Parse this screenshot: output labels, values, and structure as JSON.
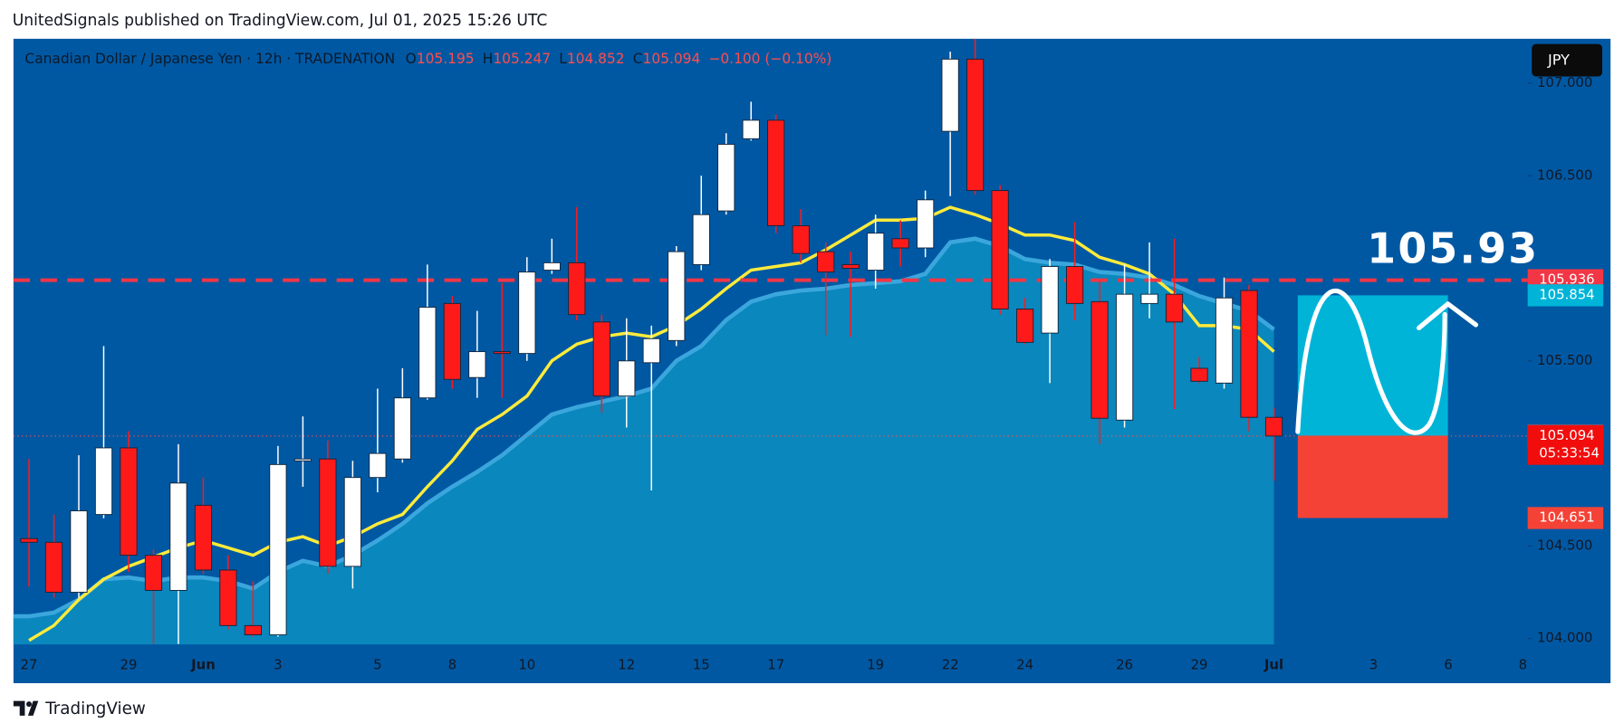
{
  "header": {
    "text": "UnitedSignals published on TradingView.com, Jul 01, 2025 15:26 UTC"
  },
  "footer": {
    "brand": "TradingView"
  },
  "chart_data": {
    "type": "candlestick",
    "title": "Canadian Dollar / Japanese Yen · 12h · TRADENATION",
    "ohlc_labels": [
      "O",
      "H",
      "L",
      "C"
    ],
    "change_label": "−0.100 (−0.10%)",
    "currency": "JPY",
    "annotation": "105.93",
    "countdown": "05:33:54",
    "up_color": "#ffffff",
    "down_color": "#ff1a1a",
    "categories": [
      "27",
      null,
      null,
      null,
      "29",
      null,
      null,
      "Jun",
      null,
      null,
      "3",
      null,
      null,
      null,
      "5",
      null,
      null,
      "8",
      null,
      null,
      "10",
      null,
      null,
      null,
      "12",
      null,
      null,
      "15",
      null,
      null,
      "17",
      null,
      null,
      null,
      "19",
      null,
      null,
      "22",
      null,
      null,
      "24",
      null,
      null,
      null,
      "26",
      null,
      null,
      "29",
      null,
      null,
      "Jul",
      null,
      null,
      null,
      "3",
      null,
      null,
      "6",
      null,
      null,
      "8"
    ],
    "open": [
      104.54,
      104.52,
      104.25,
      104.67,
      105.03,
      104.45,
      104.26,
      104.72,
      104.37,
      104.07,
      104.02,
      104.96,
      104.97,
      104.39,
      104.87,
      104.97,
      105.3,
      105.81,
      105.41,
      105.55,
      105.54,
      105.99,
      106.03,
      105.71,
      105.31,
      105.49,
      105.61,
      106.02,
      106.31,
      106.7,
      106.8,
      106.23,
      106.09,
      106.02,
      105.99,
      106.16,
      106.11,
      106.74,
      107.13,
      106.42,
      105.78,
      105.65,
      106.01,
      105.82,
      105.18,
      105.81,
      105.86,
      105.46,
      105.38,
      105.88,
      105.195,
      null,
      null,
      null,
      null,
      null,
      null,
      null,
      null,
      null,
      null
    ],
    "high": [
      104.97,
      104.67,
      104.99,
      105.58,
      105.12,
      104.48,
      105.05,
      104.87,
      104.45,
      104.31,
      105.04,
      105.2,
      105.07,
      104.96,
      105.35,
      105.46,
      106.02,
      105.85,
      105.77,
      105.92,
      106.06,
      106.16,
      106.33,
      105.75,
      105.73,
      105.69,
      106.12,
      106.5,
      106.73,
      106.9,
      106.83,
      106.32,
      106.14,
      106.09,
      106.29,
      106.26,
      106.42,
      107.17,
      107.24,
      106.45,
      105.84,
      106.05,
      106.25,
      105.93,
      106.02,
      106.14,
      106.16,
      105.52,
      105.95,
      105.91,
      105.247,
      null,
      null,
      null,
      null,
      null,
      null,
      null,
      null,
      null,
      null
    ],
    "low": [
      104.28,
      104.22,
      104.22,
      104.65,
      104.36,
      103.97,
      103.97,
      104.35,
      104.05,
      104.01,
      104.01,
      104.82,
      104.35,
      104.27,
      104.79,
      104.95,
      105.29,
      105.35,
      105.3,
      105.3,
      105.5,
      105.97,
      105.72,
      105.22,
      105.14,
      104.8,
      105.58,
      105.99,
      106.29,
      106.69,
      106.19,
      106.03,
      105.64,
      105.63,
      105.89,
      106.01,
      106.06,
      106.39,
      106.4,
      105.75,
      105.59,
      105.38,
      105.72,
      105.05,
      105.14,
      105.73,
      105.24,
      105.38,
      105.35,
      105.12,
      104.852,
      null,
      null,
      null,
      null,
      null,
      null,
      null,
      null,
      null,
      null
    ],
    "close": [
      104.52,
      104.25,
      104.69,
      105.03,
      104.45,
      104.26,
      104.84,
      104.37,
      104.07,
      104.02,
      104.94,
      104.97,
      104.39,
      104.87,
      105.0,
      105.3,
      105.79,
      105.4,
      105.55,
      105.54,
      105.98,
      106.03,
      105.75,
      105.31,
      105.5,
      105.62,
      106.09,
      106.29,
      106.67,
      106.8,
      106.23,
      106.08,
      105.98,
      106.0,
      106.19,
      106.11,
      106.37,
      107.13,
      106.42,
      105.78,
      105.6,
      106.01,
      105.81,
      105.19,
      105.86,
      105.86,
      105.71,
      105.39,
      105.84,
      105.195,
      105.094,
      null,
      null,
      null,
      null,
      null,
      null,
      null,
      null,
      null,
      null
    ],
    "series": [
      {
        "style": "area",
        "color": "#3aa6dc",
        "fill": "#0a87bd",
        "values": [
          104.12,
          104.14,
          104.21,
          104.32,
          104.33,
          104.31,
          104.33,
          104.33,
          104.31,
          104.27,
          104.36,
          104.42,
          104.39,
          104.45,
          104.53,
          104.62,
          104.73,
          104.82,
          104.9,
          104.99,
          105.1,
          105.21,
          105.25,
          105.28,
          105.31,
          105.35,
          105.5,
          105.58,
          105.72,
          105.82,
          105.86,
          105.88,
          105.89,
          105.91,
          105.92,
          105.93,
          105.97,
          106.14,
          106.16,
          106.12,
          106.05,
          106.03,
          106.02,
          105.98,
          105.97,
          105.95,
          105.91,
          105.85,
          105.81,
          105.77,
          105.67,
          null,
          null,
          null,
          null,
          null,
          null,
          null,
          null,
          null,
          null
        ]
      },
      {
        "style": "line",
        "color": "#ffeb3b",
        "values": [
          103.99,
          104.07,
          104.21,
          104.32,
          104.39,
          104.44,
          104.49,
          104.53,
          104.49,
          104.45,
          104.52,
          104.55,
          104.5,
          104.55,
          104.62,
          104.67,
          104.82,
          104.96,
          105.13,
          105.21,
          105.31,
          105.5,
          105.59,
          105.63,
          105.65,
          105.63,
          105.69,
          105.78,
          105.89,
          105.99,
          106.01,
          106.03,
          106.1,
          106.18,
          106.26,
          106.26,
          106.27,
          106.33,
          106.29,
          106.24,
          106.18,
          106.18,
          106.15,
          106.06,
          106.02,
          105.97,
          105.86,
          105.69,
          105.69,
          105.67,
          105.55,
          null,
          null,
          null,
          null,
          null,
          null,
          null,
          null,
          null,
          null
        ]
      }
    ],
    "level": {
      "value": 105.936,
      "color": "#f23645"
    },
    "position": {
      "target": 105.854,
      "entry": 105.096,
      "stop": 104.651,
      "target_color": "#00b4d8",
      "entry_color": "#7f8791",
      "stop_color": "#f44336"
    },
    "ylim": [
      103.94,
      107.24
    ],
    "yticks": [
      {
        "value": 104,
        "label": "104.000"
      },
      {
        "value": 104.5,
        "label": "104.500"
      },
      {
        "value": 105.5,
        "label": "105.500"
      },
      {
        "value": 106.5,
        "label": "106.500"
      },
      {
        "value": 107,
        "label": "107.000"
      }
    ]
  }
}
